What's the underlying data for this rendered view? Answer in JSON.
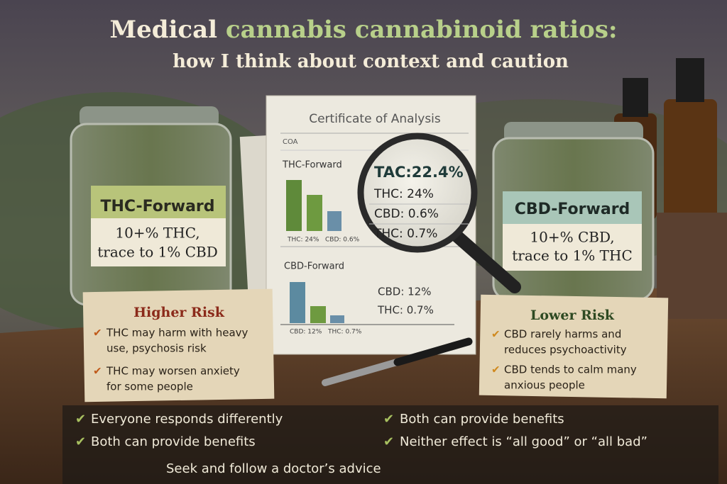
{
  "header": {
    "title_lead": "Medical",
    "title_rest": "cannabis cannabinoid ratios:",
    "subtitle": "how I think about context and caution"
  },
  "thc_jar": {
    "label": "THC-Forward",
    "lines": [
      "10+% THC,",
      "trace to 1% CBD"
    ]
  },
  "cbd_jar": {
    "label": "CBD-Forward",
    "lines": [
      "10+% CBD,",
      "trace to 1% THC"
    ]
  },
  "coa": {
    "title": "Certificate of Analysis",
    "tag": "COA",
    "thc_section": {
      "heading": "THC-Forward",
      "bar_labels": [
        "THC: 24%",
        "CBD: 0.6%"
      ]
    },
    "cbd_section": {
      "heading": "CBD-Forward",
      "bar_labels": [
        "CBD: 12%",
        "THC: 0.7%"
      ],
      "readings": [
        "CBD: 12%",
        "THC: 0.7%"
      ]
    },
    "magnified": {
      "total": "TAC:22.4%",
      "readings": [
        "THC: 24%",
        "CBD: 0.6%",
        "THC: 0.7%"
      ]
    }
  },
  "higher_risk": {
    "title": "Higher Risk",
    "items": [
      [
        "THC may harm with heavy",
        "use, psychosis risk"
      ],
      [
        "THC may worsen anxiety",
        "for some people"
      ]
    ]
  },
  "lower_risk": {
    "title": "Lower Risk",
    "items": [
      [
        "CBD rarely harms and",
        "reduces psychoactivity"
      ],
      [
        "CBD tends to calm many",
        "anxious people"
      ]
    ]
  },
  "footer": {
    "left": [
      "Everyone responds differently",
      "Both can provide benefits"
    ],
    "right": [
      "Both can provide benefits",
      "Neither effect is “all good” or “all bad”"
    ],
    "advice": "Seek and follow a doctor’s advice"
  }
}
